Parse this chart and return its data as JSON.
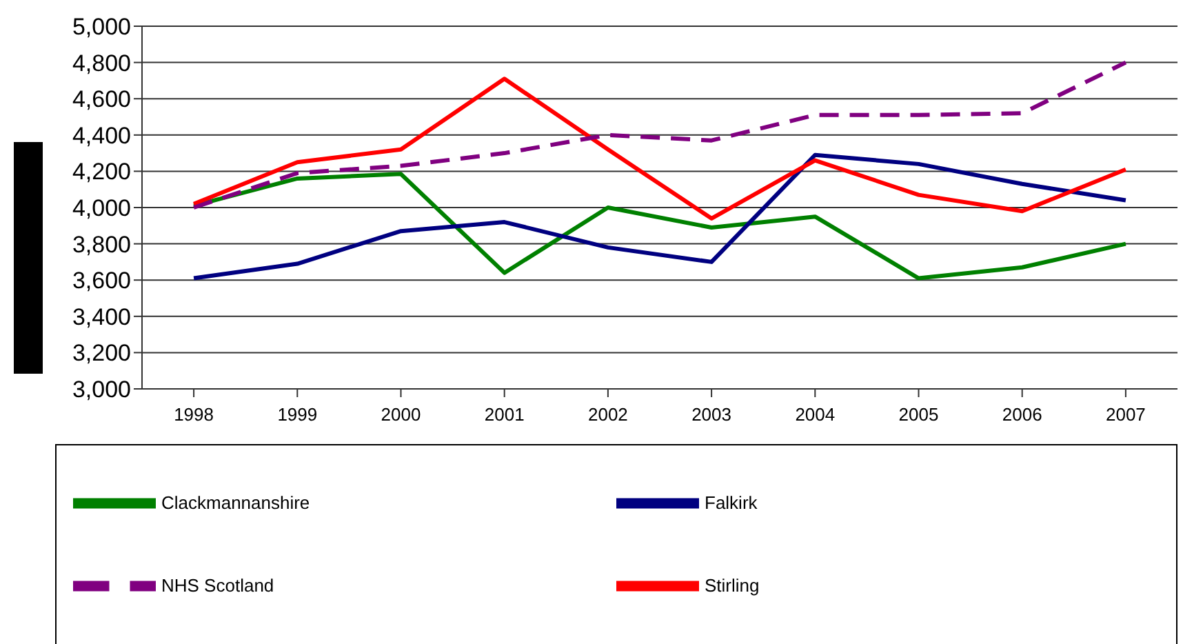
{
  "chart_data": {
    "type": "line",
    "categories": [
      "1998",
      "1999",
      "2000",
      "2001",
      "2002",
      "2003",
      "2004",
      "2005",
      "2006",
      "2007"
    ],
    "series": [
      {
        "name": "Clackmannanshire",
        "color": "#008000",
        "values": [
          4010,
          4160,
          4185,
          3640,
          4000,
          3890,
          3950,
          3610,
          3670,
          3800
        ]
      },
      {
        "name": "Falkirk",
        "color": "#000080",
        "values": [
          3610,
          3690,
          3870,
          3920,
          3780,
          3700,
          4290,
          4240,
          4130,
          4040
        ]
      },
      {
        "name": "Stirling",
        "color": "#ff0000",
        "values": [
          4020,
          4250,
          4320,
          4710,
          4320,
          3940,
          4260,
          4070,
          3980,
          4210
        ]
      },
      {
        "name": "NHS Scotland",
        "color": "#800080",
        "line_style": "dashed",
        "values": [
          4000,
          4190,
          4230,
          4300,
          4400,
          4370,
          4510,
          4510,
          4520,
          4800
        ]
      }
    ],
    "ylim": [
      3000,
      5000
    ],
    "yticks": [
      {
        "value": 3000,
        "label": "3,000"
      },
      {
        "value": 3200,
        "label": "3,200"
      },
      {
        "value": 3400,
        "label": "3,400"
      },
      {
        "value": 3600,
        "label": "3,600"
      },
      {
        "value": 3800,
        "label": "3,800"
      },
      {
        "value": 4000,
        "label": "4,000"
      },
      {
        "value": 4200,
        "label": "4,200"
      },
      {
        "value": 4400,
        "label": "4,400"
      },
      {
        "value": 4600,
        "label": "4,600"
      },
      {
        "value": 4800,
        "label": "4,800"
      },
      {
        "value": 5000,
        "label": "5,000"
      }
    ],
    "grid": "y",
    "legend": "bottom",
    "marker": "none",
    "line_style": "solid"
  }
}
